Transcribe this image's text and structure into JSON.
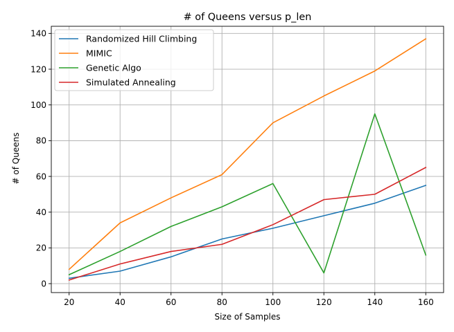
{
  "chart_data": {
    "type": "line",
    "title": "# of Queens versus p_len",
    "xlabel": "Size of Samples",
    "ylabel": "# of Queens",
    "x": [
      20,
      40,
      60,
      80,
      100,
      120,
      140,
      160
    ],
    "xlim": [
      13,
      167
    ],
    "ylim": [
      -5,
      144
    ],
    "xticks": [
      20,
      40,
      60,
      80,
      100,
      120,
      140,
      160
    ],
    "yticks": [
      0,
      20,
      40,
      60,
      80,
      100,
      120,
      140
    ],
    "grid": true,
    "legend_position": "top-left",
    "series": [
      {
        "name": "Randomized Hill Climbing",
        "color": "#1f77b4",
        "values": [
          3,
          7,
          15,
          25,
          31,
          38,
          45,
          55
        ]
      },
      {
        "name": "MIMIC",
        "color": "#ff7f0e",
        "values": [
          8,
          34,
          48,
          61,
          90,
          105,
          119,
          137
        ]
      },
      {
        "name": "Genetic Algo",
        "color": "#2ca02c",
        "values": [
          5,
          18,
          32,
          43,
          56,
          6,
          95,
          16
        ]
      },
      {
        "name": "Simulated Annealing",
        "color": "#d62728",
        "values": [
          2,
          11,
          18,
          22,
          33,
          47,
          50,
          65
        ]
      }
    ]
  }
}
